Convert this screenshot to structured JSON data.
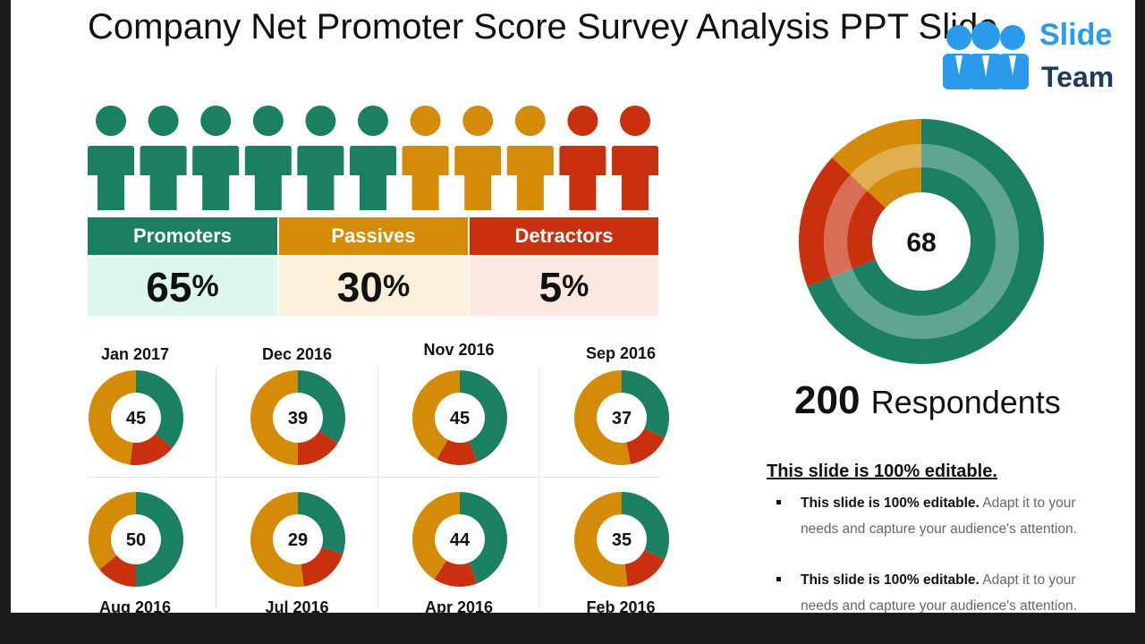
{
  "title": "Company Net Promoter Score Survey Analysis PPT Slide",
  "logo": {
    "line1": "Slide",
    "line2": "Team"
  },
  "colors": {
    "promoter": "#1b7f62",
    "passive": "#d48c08",
    "detractor": "#c9300e",
    "promoter_bg": "#ddf6ef",
    "passive_bg": "#fcf0db",
    "detractor_bg": "#fde8e2"
  },
  "people_row": [
    "promoter",
    "promoter",
    "promoter",
    "promoter",
    "promoter",
    "promoter",
    "passive",
    "passive",
    "passive",
    "detractor",
    "detractor"
  ],
  "categories": [
    {
      "label": "Promoters",
      "value": "65",
      "unit": "%"
    },
    {
      "label": "Passives",
      "value": "30",
      "unit": "%"
    },
    {
      "label": "Detractors",
      "value": "5",
      "unit": "%"
    }
  ],
  "months": [
    {
      "label": "Jan 2017",
      "score": "45",
      "fractions": [
        0.36,
        0.16,
        0.48
      ]
    },
    {
      "label": "Dec 2016",
      "score": "39",
      "fractions": [
        0.34,
        0.16,
        0.5
      ]
    },
    {
      "label": "Nov 2016",
      "score": "45",
      "fractions": [
        0.44,
        0.14,
        0.42
      ]
    },
    {
      "label": "Sep 2016",
      "score": "37",
      "fractions": [
        0.32,
        0.15,
        0.53
      ]
    },
    {
      "label": "Aug 2016",
      "score": "50",
      "fractions": [
        0.5,
        0.14,
        0.36
      ]
    },
    {
      "label": "Jul 2016",
      "score": "29",
      "fractions": [
        0.3,
        0.18,
        0.52
      ]
    },
    {
      "label": "Apr 2016",
      "score": "44",
      "fractions": [
        0.44,
        0.15,
        0.41
      ]
    },
    {
      "label": "Feb 2016",
      "score": "35",
      "fractions": [
        0.32,
        0.16,
        0.52
      ]
    }
  ],
  "overall": {
    "score": "68",
    "fractions": [
      0.69,
      0.18,
      0.13
    ],
    "respondents_number": "200",
    "respondents_label": "Respondents"
  },
  "editable": {
    "heading": "This slide is 100% editable",
    "heading_period": ".",
    "bullets": [
      {
        "bold": "This slide is 100% editable.",
        "text": " Adapt it to your needs and capture your audience's attention."
      },
      {
        "bold": "This slide is 100% editable.",
        "text": " Adapt it to your needs and capture your audience's attention."
      }
    ]
  }
}
